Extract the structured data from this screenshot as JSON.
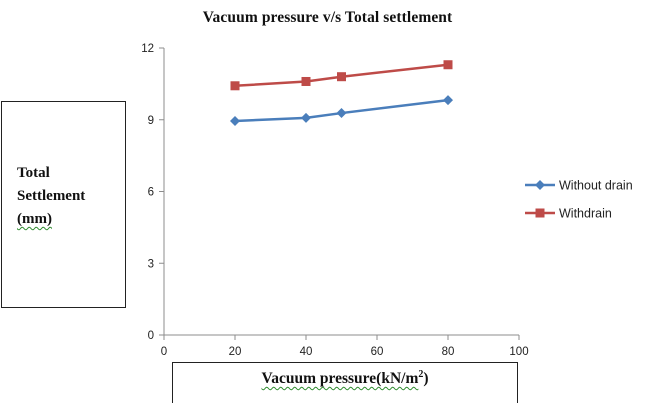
{
  "chart_data": {
    "type": "line",
    "title": "Vacuum pressure v/s Total settlement",
    "ylabel_lines": [
      "Total",
      "Settlement",
      "(mm)"
    ],
    "xlabel": {
      "main": "Vacuum pressure(kN/m",
      "sup": "2",
      "end": ")"
    },
    "xlim": [
      0,
      100
    ],
    "ylim": [
      0,
      12
    ],
    "xticks": [
      0,
      20,
      40,
      60,
      80,
      100
    ],
    "yticks": [
      0,
      3,
      6,
      9,
      12
    ],
    "x": [
      20,
      40,
      50,
      80
    ],
    "grid": false,
    "legend_position": "right",
    "series": [
      {
        "name": "Without drain",
        "values": [
          8.95,
          9.08,
          9.28,
          9.82
        ],
        "color": "#4a7ebb",
        "marker": "diamond"
      },
      {
        "name": "Withdrain",
        "values": [
          10.42,
          10.6,
          10.8,
          11.3
        ],
        "color": "#be4b48",
        "marker": "square"
      }
    ]
  }
}
